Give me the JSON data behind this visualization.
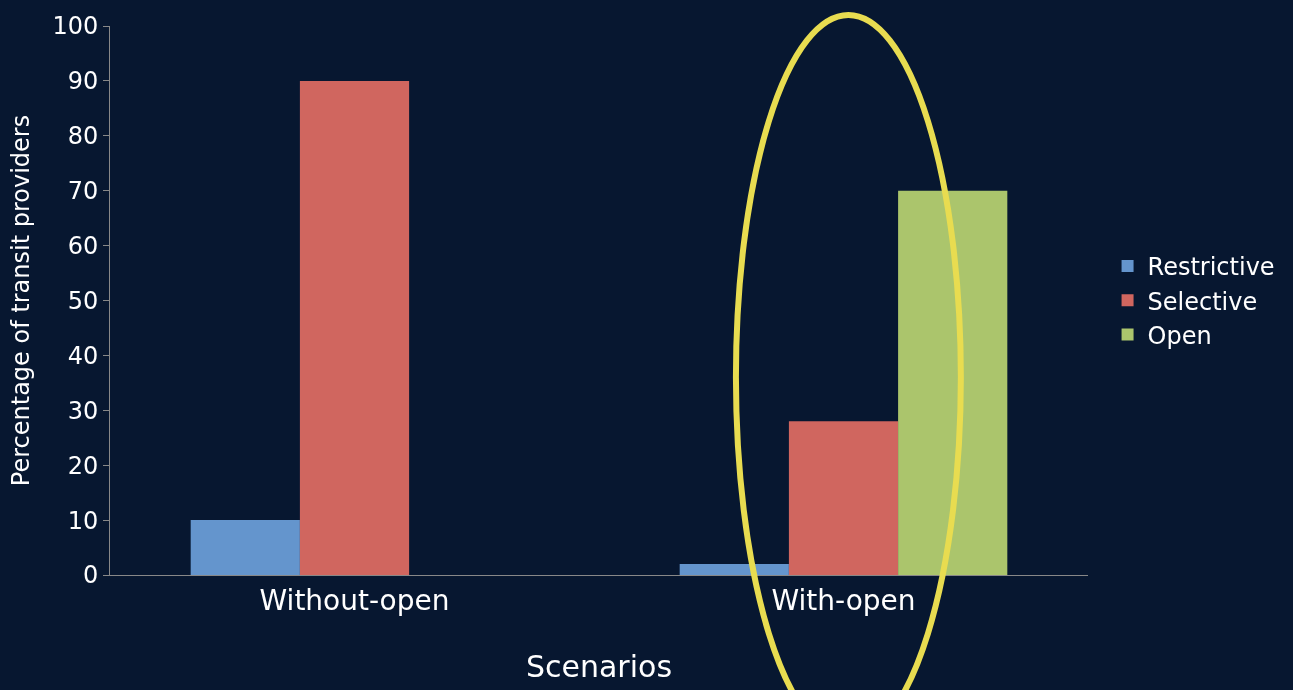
{
  "chart_data": {
    "type": "bar",
    "xlabel": "Scenarios",
    "ylabel": "Percentage of transit providers",
    "categories": [
      "Without-open",
      "With-open"
    ],
    "series": [
      {
        "name": "Restrictive",
        "color": "#6495cd",
        "values": [
          10,
          2
        ]
      },
      {
        "name": "Selective",
        "color": "#d0665f",
        "values": [
          90,
          28
        ]
      },
      {
        "name": "Open",
        "color": "#abc56c",
        "values": [
          0,
          70
        ]
      }
    ],
    "ylim": [
      0,
      100
    ],
    "yticks": [
      0,
      10,
      20,
      30,
      40,
      50,
      60,
      70,
      80,
      90,
      100
    ],
    "grid": false,
    "legend": "right"
  }
}
